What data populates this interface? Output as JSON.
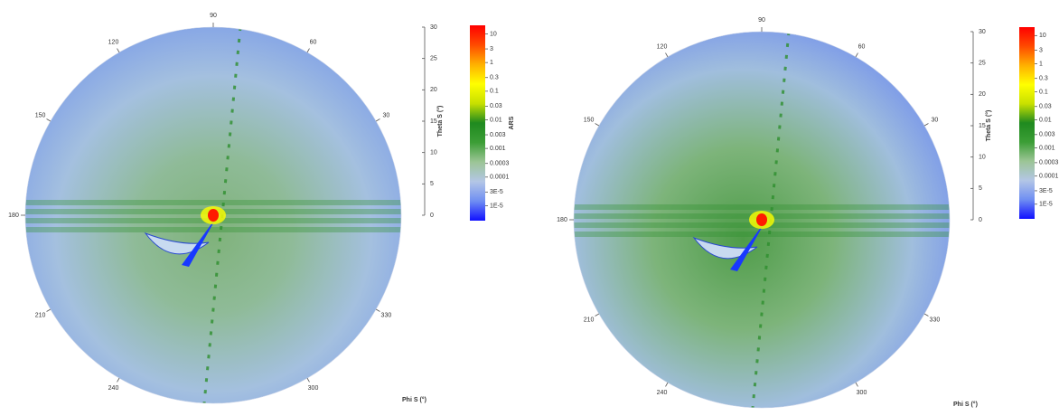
{
  "chart_data": [
    {
      "type": "polar-heatmap",
      "phi_label": "Phi S (°)",
      "theta_label": "Theta S (°)",
      "thetalim": [
        0,
        30
      ],
      "thetaticks": [
        0,
        5,
        10,
        15,
        20,
        25,
        30
      ],
      "phiticks": [
        30,
        60,
        90,
        120,
        150,
        180,
        210,
        240,
        300,
        330
      ],
      "colorbar": {
        "label": "ARS",
        "log": true,
        "lim": [
          3e-06,
          20
        ],
        "colors": [
          "#1010ff",
          "#6f8ef2",
          "#b3c6e6",
          "#9cc596",
          "#3c9e36",
          "#1f8a1f",
          "#c8e000",
          "#ffff00",
          "#ffb000",
          "#ff4a00",
          "#ff0000"
        ],
        "ticks": [
          {
            "value": 1e-05,
            "label": "1E-5"
          },
          {
            "value": 3e-05,
            "label": "3E-5"
          },
          0.0001,
          0.0003,
          0.001,
          0.003,
          0.01,
          0.03,
          0.1,
          0.3,
          1,
          3,
          10
        ]
      }
    },
    {
      "type": "polar-heatmap",
      "phi_label": "Phi S (°)",
      "theta_label": "Theta S (°)",
      "thetalim": [
        0,
        30
      ],
      "thetaticks": [
        0,
        5,
        10,
        15,
        20,
        25,
        30
      ],
      "phiticks": [
        30,
        60,
        90,
        120,
        150,
        180,
        210,
        240,
        300,
        330
      ],
      "colorbar": {
        "log": true,
        "lim": [
          3e-06,
          20
        ],
        "colors": [
          "#1010ff",
          "#6f8ef2",
          "#b3c6e6",
          "#9cc596",
          "#3c9e36",
          "#1f8a1f",
          "#c8e000",
          "#ffff00",
          "#ffb000",
          "#ff4a00",
          "#ff0000"
        ],
        "ticks": [
          {
            "value": 1e-05,
            "label": "1E-5"
          },
          {
            "value": 3e-05,
            "label": "3E-5"
          },
          0.0001,
          0.0003,
          0.001,
          0.003,
          0.01,
          0.03,
          0.1,
          0.3,
          1,
          3,
          10
        ]
      }
    }
  ]
}
